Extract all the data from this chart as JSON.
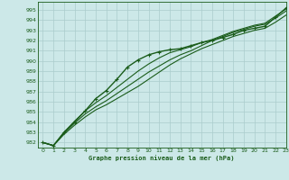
{
  "title": "Graphe pression niveau de la mer (hPa)",
  "bg_color": "#cce8e8",
  "grid_color": "#aacccc",
  "line_color": "#1a5c1a",
  "text_color": "#1a5c1a",
  "xlim": [
    -0.5,
    23
  ],
  "ylim": [
    981.5,
    995.8
  ],
  "yticks": [
    982,
    983,
    984,
    985,
    986,
    987,
    988,
    989,
    990,
    991,
    992,
    993,
    994,
    995
  ],
  "xticks": [
    0,
    1,
    2,
    3,
    4,
    5,
    6,
    7,
    8,
    9,
    10,
    11,
    12,
    13,
    14,
    15,
    16,
    17,
    18,
    19,
    20,
    21,
    22,
    23
  ],
  "series": [
    {
      "y": [
        982.0,
        981.7,
        983.0,
        984.0,
        985.1,
        986.3,
        987.1,
        988.2,
        989.4,
        990.1,
        990.6,
        990.9,
        991.1,
        991.2,
        991.5,
        991.8,
        992.0,
        992.3,
        992.6,
        993.0,
        993.2,
        993.4,
        994.3,
        995.2
      ],
      "marker": true,
      "lw": 1.0
    },
    {
      "y": [
        982.0,
        981.7,
        982.8,
        983.7,
        984.5,
        985.2,
        985.7,
        986.3,
        986.9,
        987.5,
        988.2,
        988.9,
        989.6,
        990.2,
        990.7,
        991.2,
        991.6,
        992.0,
        992.4,
        992.7,
        993.0,
        993.2,
        993.8,
        994.5
      ],
      "marker": false,
      "lw": 0.8
    },
    {
      "y": [
        982.0,
        981.7,
        982.9,
        983.9,
        984.8,
        985.5,
        986.1,
        986.8,
        987.5,
        988.2,
        988.9,
        989.5,
        990.1,
        990.6,
        991.0,
        991.5,
        992.0,
        992.4,
        992.8,
        993.1,
        993.4,
        993.6,
        994.2,
        994.9
      ],
      "marker": false,
      "lw": 0.8
    },
    {
      "y": [
        982.0,
        981.7,
        983.0,
        984.1,
        985.1,
        985.9,
        986.6,
        987.4,
        988.2,
        989.0,
        989.7,
        990.3,
        990.8,
        991.1,
        991.4,
        991.8,
        992.1,
        992.5,
        992.9,
        993.2,
        993.5,
        993.7,
        994.4,
        995.1
      ],
      "marker": false,
      "lw": 0.8
    }
  ]
}
